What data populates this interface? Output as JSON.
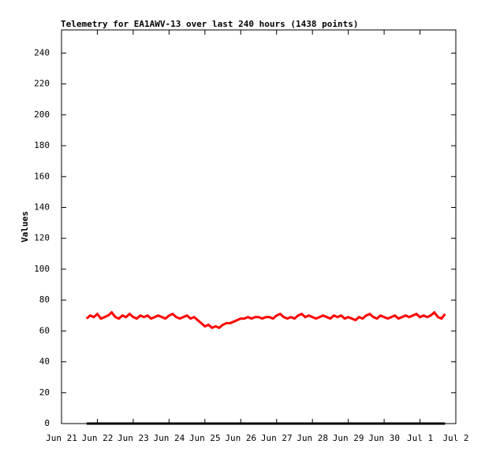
{
  "chart_data": {
    "type": "line",
    "title": "Telemetry for EA1AWV-13 over last 240 hours (1438 points)",
    "y_label": "Values",
    "xlim": [
      0,
      11
    ],
    "xticks": [
      {
        "value": 0,
        "label": "Jun 21"
      },
      {
        "value": 1,
        "label": "Jun 22"
      },
      {
        "value": 2,
        "label": "Jun 23"
      },
      {
        "value": 3,
        "label": "Jun 24"
      },
      {
        "value": 4,
        "label": "Jun 25"
      },
      {
        "value": 5,
        "label": "Jun 26"
      },
      {
        "value": 6,
        "label": "Jun 27"
      },
      {
        "value": 7,
        "label": "Jun 28"
      },
      {
        "value": 8,
        "label": "Jun 29"
      },
      {
        "value": 9,
        "label": "Jun 30"
      },
      {
        "value": 10,
        "label": "Jul 1"
      },
      {
        "value": 11,
        "label": "Jul 2"
      }
    ],
    "ylim": [
      0,
      255
    ],
    "yticks": [
      0,
      20,
      40,
      60,
      80,
      100,
      120,
      140,
      160,
      180,
      200,
      220,
      240
    ],
    "series": [
      {
        "color": "#ff0000",
        "x": [
          0.7,
          0.8,
          0.9,
          1,
          1.1,
          1.2,
          1.3,
          1.4,
          1.5,
          1.6,
          1.7,
          1.8,
          1.9,
          2,
          2.1,
          2.2,
          2.3,
          2.4,
          2.5,
          2.6,
          2.7,
          2.8,
          2.9,
          3,
          3.1,
          3.2,
          3.3,
          3.4,
          3.5,
          3.6,
          3.7,
          3.8,
          3.9,
          4,
          4.1,
          4.2,
          4.3,
          4.4,
          4.5,
          4.6,
          4.7,
          4.8,
          4.9,
          5,
          5.1,
          5.2,
          5.3,
          5.4,
          5.5,
          5.6,
          5.7,
          5.8,
          5.9,
          6,
          6.1,
          6.2,
          6.3,
          6.4,
          6.5,
          6.6,
          6.7,
          6.8,
          6.9,
          7,
          7.1,
          7.2,
          7.3,
          7.4,
          7.5,
          7.6,
          7.7,
          7.8,
          7.9,
          8,
          8.1,
          8.2,
          8.3,
          8.4,
          8.5,
          8.6,
          8.7,
          8.8,
          8.9,
          9,
          9.1,
          9.2,
          9.3,
          9.4,
          9.5,
          9.6,
          9.7,
          9.8,
          9.9,
          10,
          10.1,
          10.2,
          10.3,
          10.4,
          10.5,
          10.6,
          10.7
        ],
        "values": [
          68,
          70,
          69,
          71,
          68,
          69,
          70,
          72,
          69,
          68,
          70,
          69,
          71,
          69,
          68,
          70,
          69,
          70,
          68,
          69,
          70,
          69,
          68,
          70,
          71,
          69,
          68,
          69,
          70,
          68,
          69,
          67,
          65,
          63,
          64,
          62,
          63,
          62,
          64,
          65,
          65,
          66,
          67,
          68,
          68,
          69,
          68,
          69,
          69,
          68,
          69,
          69,
          68,
          70,
          71,
          69,
          68,
          69,
          68,
          70,
          71,
          69,
          70,
          69,
          68,
          69,
          70,
          69,
          68,
          70,
          69,
          70,
          68,
          69,
          68,
          67,
          69,
          68,
          70,
          71,
          69,
          68,
          70,
          69,
          68,
          69,
          70,
          68,
          69,
          70,
          69,
          70,
          71,
          69,
          70,
          69,
          70,
          72,
          69,
          68,
          71
        ]
      },
      {
        "color": "#000000",
        "x": [
          0.7,
          10.7
        ],
        "values": [
          0,
          0
        ]
      }
    ]
  }
}
